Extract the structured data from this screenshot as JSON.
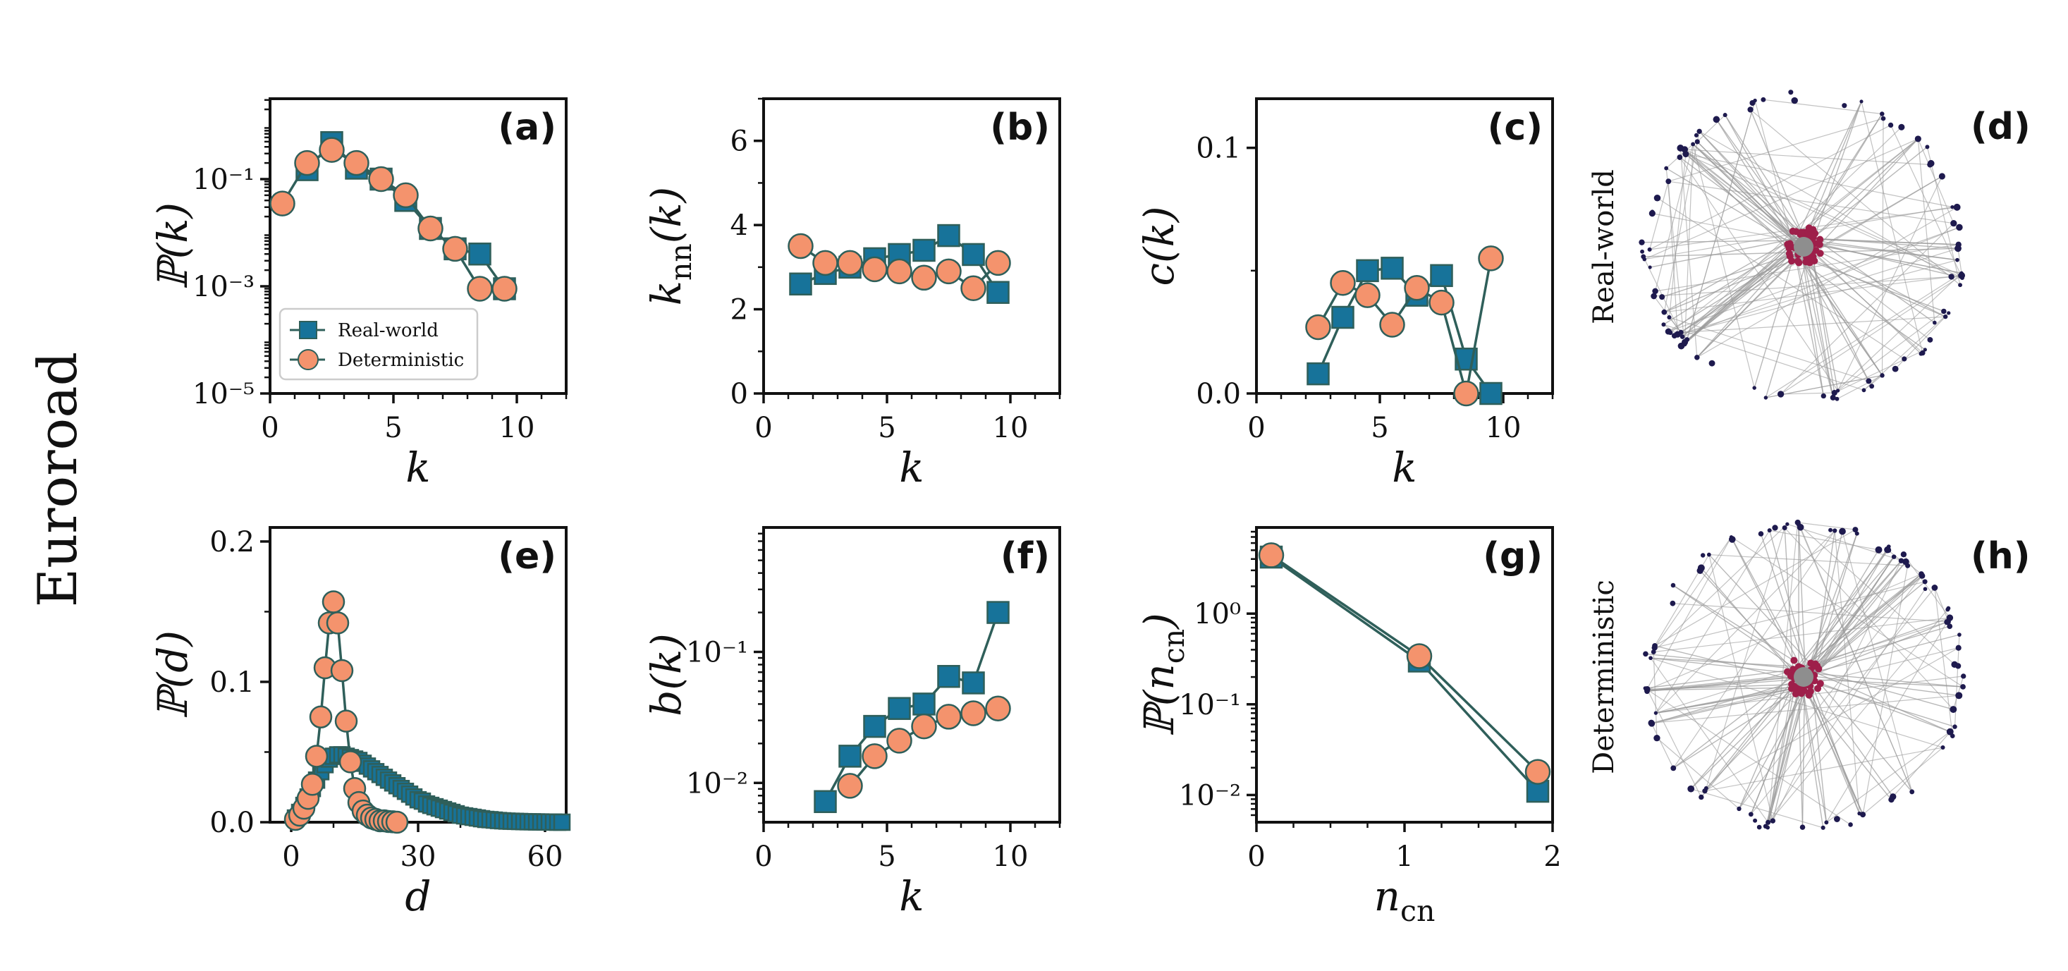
{
  "colors": {
    "real": "#17739a",
    "det": "#f4936d",
    "line": "#2f5f5a",
    "edge": "#9a9a9a",
    "hub": "#9e1f4a",
    "node": "#1e1a4e",
    "center": "#8e8e8e"
  },
  "row_label": "Euroroad",
  "legend": {
    "real": "Real-world",
    "det": "Deterministic"
  },
  "graph_labels": {
    "d": "Real-world",
    "h": "Deterministic"
  },
  "panel_tags": {
    "a": "(a)",
    "b": "(b)",
    "c": "(c)",
    "d": "(d)",
    "e": "(e)",
    "f": "(f)",
    "g": "(g)",
    "h": "(h)"
  },
  "chart_data": [
    {
      "id": "a",
      "type": "line",
      "yscale": "log",
      "xlabel": "k",
      "ylabel": "ℙ(k)",
      "xlim": [
        0,
        12
      ],
      "ylim_log10": [
        -5,
        0.5
      ],
      "xticks": [
        0,
        5,
        10
      ],
      "xticklabels": [
        "0",
        "5",
        "10"
      ],
      "yticks": [
        -5,
        -3,
        -1
      ],
      "yticklabels": [
        "10⁻⁵",
        "10⁻³",
        "10⁻¹"
      ],
      "series": [
        {
          "name": "Real-world",
          "marker": "square",
          "x": [
            1.5,
            2.5,
            3.5,
            4.5,
            5.5,
            6.5,
            7.5,
            8.5,
            9.5
          ],
          "y": [
            0.15,
            0.48,
            0.16,
            0.1,
            0.04,
            0.012,
            0.005,
            0.004,
            0.0009
          ]
        },
        {
          "name": "Deterministic",
          "marker": "circle",
          "x": [
            0.5,
            1.5,
            2.5,
            3.5,
            4.5,
            5.5,
            6.5,
            7.5,
            8.5,
            9.5
          ],
          "y": [
            0.035,
            0.2,
            0.35,
            0.2,
            0.1,
            0.05,
            0.012,
            0.005,
            0.0009,
            0.0009
          ]
        }
      ]
    },
    {
      "id": "b",
      "type": "line",
      "yscale": "linear",
      "xlabel": "k",
      "ylabel": "k_nn(k)",
      "xlim": [
        0,
        12
      ],
      "ylim": [
        0,
        7
      ],
      "xticks": [
        0,
        5,
        10
      ],
      "xticklabels": [
        "0",
        "5",
        "10"
      ],
      "yticks": [
        0,
        2,
        4,
        6
      ],
      "yticklabels": [
        "0",
        "2",
        "4",
        "6"
      ],
      "series": [
        {
          "name": "Real-world",
          "marker": "square",
          "x": [
            1.5,
            2.5,
            3.5,
            4.5,
            5.5,
            6.5,
            7.5,
            8.5,
            9.5
          ],
          "y": [
            2.6,
            2.85,
            3.0,
            3.2,
            3.3,
            3.4,
            3.75,
            3.3,
            2.4
          ]
        },
        {
          "name": "Deterministic",
          "marker": "circle",
          "x": [
            1.5,
            2.5,
            3.5,
            4.5,
            5.5,
            6.5,
            7.5,
            8.5,
            9.5
          ],
          "y": [
            3.5,
            3.1,
            3.1,
            2.95,
            2.9,
            2.75,
            2.9,
            2.5,
            3.1
          ]
        }
      ]
    },
    {
      "id": "c",
      "type": "line",
      "yscale": "linear",
      "xlabel": "k",
      "ylabel": "c(k)",
      "xlim": [
        0,
        12
      ],
      "ylim": [
        0,
        0.12
      ],
      "xticks": [
        0,
        5,
        10
      ],
      "xticklabels": [
        "0",
        "5",
        "10"
      ],
      "yticks": [
        0,
        0.1
      ],
      "yticklabels": [
        "0.0",
        "0.1"
      ],
      "series": [
        {
          "name": "Real-world",
          "marker": "square",
          "x": [
            2.5,
            3.5,
            4.5,
            5.5,
            6.5,
            7.5,
            8.5,
            9.5
          ],
          "y": [
            0.008,
            0.031,
            0.05,
            0.051,
            0.04,
            0.048,
            0.014,
            0.0
          ]
        },
        {
          "name": "Deterministic",
          "marker": "circle",
          "x": [
            2.5,
            3.5,
            4.5,
            5.5,
            6.5,
            7.5,
            8.5,
            9.5
          ],
          "y": [
            0.027,
            0.045,
            0.04,
            0.028,
            0.043,
            0.037,
            0.0,
            0.055
          ]
        }
      ]
    },
    {
      "id": "e",
      "type": "line",
      "yscale": "linear",
      "xlabel": "d",
      "ylabel": "ℙ(d)",
      "xlim": [
        -5,
        65
      ],
      "ylim": [
        0,
        0.21
      ],
      "xticks": [
        0,
        30,
        60
      ],
      "xticklabels": [
        "0",
        "30",
        "60"
      ],
      "yticks": [
        0,
        0.1,
        0.2
      ],
      "yticklabels": [
        "0.0",
        "0.1",
        "0.2"
      ],
      "series": [
        {
          "name": "Real-world",
          "marker": "square",
          "x": [
            1,
            2,
            3,
            4,
            5,
            6,
            7,
            8,
            9,
            10,
            11,
            12,
            13,
            14,
            15,
            16,
            17,
            18,
            19,
            20,
            21,
            22,
            23,
            24,
            25,
            26,
            27,
            28,
            29,
            30,
            31,
            32,
            33,
            34,
            35,
            36,
            37,
            38,
            39,
            40,
            41,
            42,
            43,
            44,
            45,
            46,
            47,
            48,
            49,
            50,
            51,
            52,
            53,
            54,
            55,
            56,
            57,
            58,
            59,
            60,
            61,
            62,
            63,
            64
          ],
          "y": [
            0.003,
            0.007,
            0.012,
            0.018,
            0.024,
            0.03,
            0.036,
            0.041,
            0.045,
            0.047,
            0.048,
            0.048,
            0.047,
            0.046,
            0.045,
            0.044,
            0.042,
            0.04,
            0.038,
            0.036,
            0.034,
            0.032,
            0.03,
            0.028,
            0.026,
            0.024,
            0.022,
            0.02,
            0.018,
            0.016,
            0.015,
            0.013,
            0.012,
            0.011,
            0.01,
            0.009,
            0.008,
            0.007,
            0.006,
            0.005,
            0.0045,
            0.004,
            0.0035,
            0.003,
            0.0025,
            0.002,
            0.0018,
            0.0015,
            0.0012,
            0.001,
            0.0008,
            0.0007,
            0.0006,
            0.0005,
            0.0004,
            0.0003,
            0.0003,
            0.0002,
            0.0002,
            0.0001,
            0.0001,
            0.0001,
            0.0,
            0.0
          ]
        },
        {
          "name": "Deterministic",
          "marker": "circle",
          "x": [
            1,
            2,
            3,
            4,
            5,
            6,
            7,
            8,
            9,
            10,
            11,
            12,
            13,
            14,
            15,
            16,
            17,
            18,
            19,
            20,
            21,
            22,
            23,
            24,
            25
          ],
          "y": [
            0.002,
            0.005,
            0.01,
            0.017,
            0.027,
            0.047,
            0.075,
            0.11,
            0.142,
            0.157,
            0.142,
            0.108,
            0.072,
            0.043,
            0.024,
            0.014,
            0.008,
            0.005,
            0.003,
            0.002,
            0.001,
            0.001,
            0.0005,
            0.0003,
            0.0
          ]
        }
      ]
    },
    {
      "id": "f",
      "type": "line",
      "yscale": "log",
      "xlabel": "k",
      "ylabel": "b(k)",
      "xlim": [
        0,
        12
      ],
      "ylim_log10": [
        -2.3,
        -0.05
      ],
      "xticks": [
        0,
        5,
        10
      ],
      "xticklabels": [
        "0",
        "5",
        "10"
      ],
      "yticks": [
        -2,
        -1
      ],
      "yticklabels": [
        "10⁻²",
        "10⁻¹"
      ],
      "series": [
        {
          "name": "Real-world",
          "marker": "square",
          "x": [
            2.5,
            3.5,
            4.5,
            5.5,
            6.5,
            7.5,
            8.5,
            9.5
          ],
          "y": [
            0.0072,
            0.016,
            0.027,
            0.037,
            0.04,
            0.065,
            0.058,
            0.2
          ]
        },
        {
          "name": "Deterministic",
          "marker": "circle",
          "x": [
            3.5,
            4.5,
            5.5,
            6.5,
            7.5,
            8.5,
            9.5
          ],
          "y": [
            0.0095,
            0.016,
            0.021,
            0.027,
            0.032,
            0.034,
            0.037
          ]
        }
      ]
    },
    {
      "id": "g",
      "type": "line",
      "yscale": "log",
      "xlabel": "n_cn",
      "ylabel": "ℙ(n_cn)",
      "xlim": [
        0,
        2
      ],
      "ylim_log10": [
        -2.3,
        0.95
      ],
      "xticks": [
        0,
        1,
        2
      ],
      "xticklabels": [
        "0",
        "1",
        "2"
      ],
      "yticks": [
        -2,
        -1,
        0
      ],
      "yticklabels": [
        "10⁻²",
        "10⁻¹",
        "10⁰"
      ],
      "series": [
        {
          "name": "Real-world",
          "marker": "square",
          "x": [
            0.1,
            1.1,
            1.9
          ],
          "y": [
            4.2,
            0.3,
            0.011
          ]
        },
        {
          "name": "Deterministic",
          "marker": "circle",
          "x": [
            0.1,
            1.1,
            1.9
          ],
          "y": [
            4.4,
            0.34,
            0.018
          ]
        }
      ]
    }
  ]
}
